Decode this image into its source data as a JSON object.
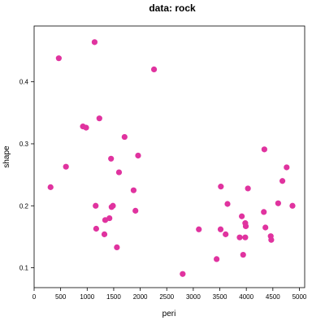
{
  "chart_data": {
    "type": "scatter",
    "title": "data: rock",
    "xlabel": "peri",
    "ylabel": "shape",
    "xlim": [
      0,
      5100
    ],
    "ylim": [
      0.068,
      0.49
    ],
    "x_ticks": [
      0,
      500,
      1000,
      1500,
      2000,
      2500,
      3000,
      3500,
      4000,
      4500,
      5000
    ],
    "y_ticks": [
      0.1,
      0.2,
      0.3,
      0.4
    ],
    "x_tick_labels": [
      "0",
      "500",
      "1000",
      "1500",
      "2000",
      "2500",
      "3000",
      "3500",
      "4000",
      "4500",
      "5000"
    ],
    "y_tick_labels": [
      "0.1",
      "0.2",
      "0.3",
      "0.4"
    ],
    "grid": false,
    "point_color": "#e0339f",
    "x": [
      465,
      1140,
      2260,
      1230,
      920,
      980,
      1705,
      1960,
      310,
      600,
      1450,
      1600,
      1875,
      1160,
      1460,
      1485,
      1910,
      1340,
      1420,
      1170,
      1325,
      1560,
      2800,
      3520,
      3645,
      4030,
      3980,
      4600,
      4330,
      3915,
      3515,
      3610,
      3990,
      4360,
      4460,
      4470,
      3440,
      3105,
      3875,
      3940,
      4340,
      4760,
      4680,
      4870,
      3980
    ],
    "y": [
      0.438,
      0.464,
      0.42,
      0.341,
      0.328,
      0.326,
      0.311,
      0.281,
      0.23,
      0.263,
      0.276,
      0.254,
      0.225,
      0.2,
      0.198,
      0.2,
      0.192,
      0.177,
      0.18,
      0.163,
      0.154,
      0.133,
      0.09,
      0.231,
      0.203,
      0.228,
      0.172,
      0.204,
      0.19,
      0.183,
      0.162,
      0.154,
      0.167,
      0.165,
      0.151,
      0.145,
      0.114,
      0.162,
      0.149,
      0.121,
      0.291,
      0.262,
      0.24,
      0.2,
      0.149
    ]
  }
}
